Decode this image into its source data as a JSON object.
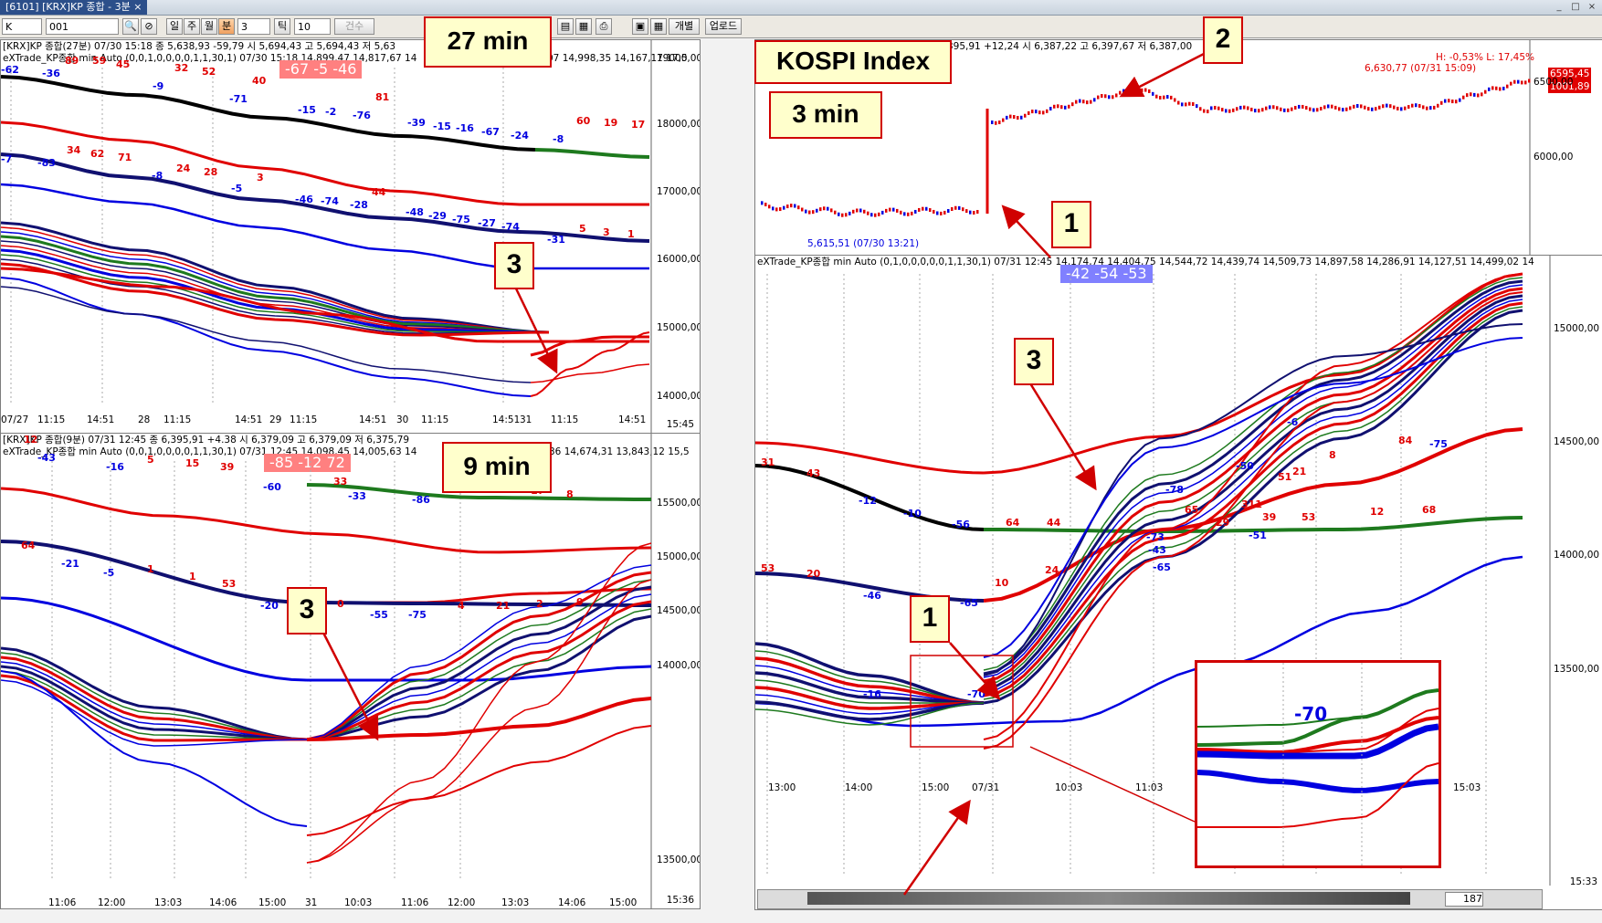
{
  "window": {
    "tab_label": "[6101] [KRX]KP 종합 - 3분",
    "tab_close": "×",
    "controls": [
      "_",
      "□",
      "×"
    ]
  },
  "toolbar": {
    "market": "K",
    "code": "001",
    "period_buttons": [
      "일",
      "주",
      "월",
      "분",
      "틱"
    ],
    "minute_value": "3",
    "tick_value": "10",
    "volume_label": "건수",
    "indiv_label": "개별",
    "upload_label": "업로드"
  },
  "panels": {
    "p27": {
      "header1": "[KRX]KP 종합(27분) 07/30 15:18  종 5,638,93 -59,79  시 5,694,43 고 5,694,43 저 5,63",
      "header2": "eXTrade_KP종합 min Auto  (0,0,1,0,0,0,0,1,1,30,1) 07/30 15:18 14,899,47 14,817,67 14",
      "header2_right": "07 14,998,35 14,167,17 17,5",
      "pill": "-67  -5  -46",
      "y_ticks": [
        "19000,00",
        "18000,00",
        "17000,00",
        "16000,00",
        "15000,00",
        "14000,00"
      ],
      "x_ticks": [
        "07/27",
        "11:15",
        "14:51",
        "28",
        "11:15",
        "14:51",
        "29",
        "11:15",
        "14:51",
        "30",
        "11:15",
        "14:51",
        "31",
        "11:15",
        "14:51"
      ],
      "clock": "15:45",
      "labels_black": [
        "89",
        "59",
        "45",
        "32",
        "52",
        "40",
        "81",
        "60",
        "19",
        "17"
      ],
      "labels_blue": [
        "-62",
        "-36",
        "-9",
        "-71",
        "-15",
        "-2",
        "-76",
        "-39",
        "-15",
        "-16",
        "-67",
        "-24",
        "-8"
      ],
      "labels_mid_red": [
        "34",
        "62",
        "71",
        "24",
        "28",
        "3",
        "44",
        "5",
        "3",
        "1"
      ],
      "labels_mid_blue": [
        "-7",
        "-83",
        "-8",
        "-5",
        "-46",
        "-74",
        "-28",
        "-48",
        "-29",
        "-75",
        "-27",
        "-74",
        "-31"
      ]
    },
    "p9": {
      "header1": "[KRX]KP 종합(9분) 07/31 12:45  종 6,395,91 +4.38  시 6,379,09 고 6,379,09 저 6,375,79",
      "header2": "eXTrade_KP종합 min Auto  (0,0,1,0,0,0,0,1,1,30,1) 07/31 12:45 14,098,45 14,005,63 14",
      "header2_right": "36 14,674,31 13,843,12 15,5",
      "pill": "-85  -12  72",
      "y_ticks": [
        "15500,00",
        "15000,00",
        "14500,00",
        "14000,00",
        "13500,00"
      ],
      "x_ticks": [
        "11:06",
        "12:00",
        "13:03",
        "14:06",
        "15:00",
        "31",
        "10:03",
        "11:06",
        "12:00",
        "13:03",
        "14:06",
        "15:00"
      ],
      "clock": "15:36",
      "labels_top": [
        "12",
        "5",
        "15",
        "39",
        "33",
        "35",
        "29",
        "17",
        "8"
      ],
      "labels_top_blue": [
        "-43",
        "-16",
        "-60",
        "-33",
        "-86"
      ],
      "labels_mid": [
        "64",
        "1",
        "1",
        "53",
        "0",
        "4",
        "21",
        "2",
        "9"
      ],
      "labels_mid_blue": [
        "-21",
        "-5",
        "-20",
        "-55",
        "-75"
      ]
    },
    "pK": {
      "header1": "395,91 +12,24  시 6,387,22 고 6,397,67 저 6,387,00",
      "high_low": "H: -0,53%  L: 17,45%",
      "high_price": "6,630,77 (07/31 15:09)",
      "low_price": "5,615,51 (07/30 13:21)",
      "last_price": "6595,45",
      "last_price2": "1001,89",
      "y_ticks": [
        "6500,00",
        "6000,00"
      ]
    },
    "pB": {
      "header": "eXTrade_KP종합 min Auto  (0,1,0,0,0,0,0,1,1,30,1) 07/31 12:45 14,174,74 14,404,75 14,544,72 14,439,74 14,509,73 14,897,58 14,286,91 14,127,51 14,499,02 14",
      "pill": "-42  -54  -53",
      "y_ticks": [
        "15000,00",
        "14500,00",
        "14000,00",
        "13500,00"
      ],
      "x_ticks": [
        "13:00",
        "14:00",
        "15:00",
        "07/31",
        "10:03",
        "11:03",
        "12:03",
        "13:03",
        "14:03",
        "15:03"
      ],
      "clock": "15:33",
      "scroll_value": "187",
      "labels_red": [
        "31",
        "43",
        "64",
        "44",
        "53",
        "20",
        "39",
        "53",
        "12",
        "68",
        "10",
        "24",
        "65",
        "29",
        "311",
        "21",
        "8",
        "84",
        "51"
      ],
      "labels_blue": [
        "-12",
        "-10",
        "-56",
        "-46",
        "-20",
        "-65",
        "-16",
        "-70",
        "-73",
        "-43",
        "-51",
        "-78",
        "-50",
        "-75",
        "-6",
        "-65"
      ],
      "inset_label": "-70"
    }
  },
  "callouts": {
    "c27": "27 min",
    "c9": "9 min",
    "kospi": "KOSPI Index",
    "c3min": "3 min",
    "n1": "1",
    "n2": "2",
    "n3": "3"
  },
  "colors": {
    "red": "#e00000",
    "blue": "#0000e0",
    "navy": "#101070",
    "green": "#1e7a1e",
    "black": "#000000",
    "callout_bg": "#ffffcc",
    "pill_red": "#ff8080",
    "pill_blue": "#8080ff"
  }
}
